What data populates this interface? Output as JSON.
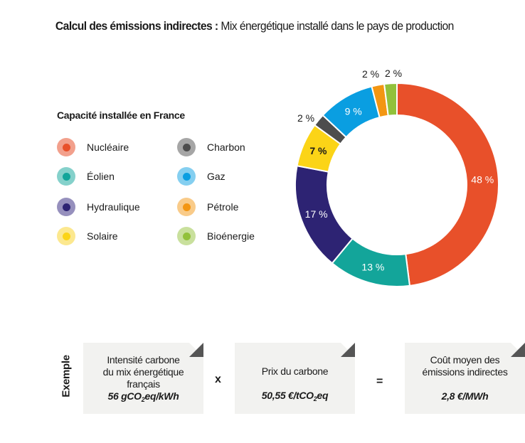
{
  "title": {
    "bold": "Calcul des émissions indirectes :",
    "rest": "Mix énergétique installé dans le pays de production"
  },
  "legend": {
    "heading": "Capacité installée en France",
    "items": [
      {
        "label": "Nucléaire",
        "color": "#e8502a",
        "light": "#f2a08c"
      },
      {
        "label": "Éolien",
        "color": "#13a59a",
        "light": "#85d1cb"
      },
      {
        "label": "Hydraulique",
        "color": "#2d2373",
        "light": "#9690bd"
      },
      {
        "label": "Solaire",
        "color": "#fbd417",
        "light": "#fce88f"
      },
      {
        "label": "Charbon",
        "color": "#4d4d4d",
        "light": "#a6a6a6"
      },
      {
        "label": "Gaz",
        "color": "#0a9ee1",
        "light": "#85cff0"
      },
      {
        "label": "Pétrole",
        "color": "#f39612",
        "light": "#f9cb89"
      },
      {
        "label": "Bioénergie",
        "color": "#92c13b",
        "light": "#c9e09d"
      }
    ]
  },
  "chart_data": {
    "type": "pie",
    "style": "donut",
    "categories": [
      "Nucléaire",
      "Éolien",
      "Hydraulique",
      "Solaire",
      "Charbon",
      "Gaz",
      "Pétrole",
      "Bioénergie"
    ],
    "values": [
      48,
      13,
      17,
      7,
      2,
      9,
      2,
      2
    ],
    "labels": [
      "48 %",
      "13 %",
      "17 %",
      "7 %",
      "2 %",
      "9 %",
      "2 %",
      "2 %"
    ],
    "colors": [
      "#e8502a",
      "#13a59a",
      "#2d2373",
      "#fbd417",
      "#4d4d4d",
      "#0a9ee1",
      "#f39612",
      "#92c13b"
    ]
  },
  "example": {
    "label": "Exemple",
    "card1": {
      "line1": "Intensité carbone",
      "line2": "du mix énergétique",
      "line3": "français",
      "value_pre": "56 gCO",
      "value_sub": "2",
      "value_post": "eq/kWh"
    },
    "op1": "x",
    "card2": {
      "line1": "Prix du carbone",
      "value_pre": "50,55 €/tCO",
      "value_sub": "2",
      "value_post": "eq"
    },
    "op2": "=",
    "card3": {
      "line1": "Coût moyen des",
      "line2": "émissions indirectes",
      "value": "2,8 €/MWh"
    }
  }
}
